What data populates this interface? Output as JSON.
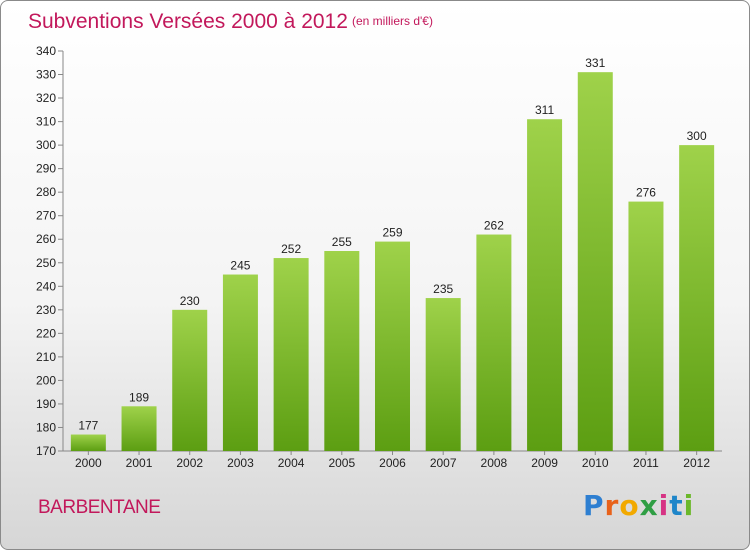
{
  "header": {
    "title": "Subventions Versées 2000 à 2012",
    "subtitle": "(en milliers d'€)"
  },
  "footer": {
    "town": "BARBENTANE",
    "logo_text": "Proxiti"
  },
  "colors": {
    "bar_top": "#9fd24a",
    "bar_bottom": "#5c9e12",
    "title": "#c2185b"
  },
  "chart_data": {
    "type": "bar",
    "title": "Subventions Versées 2000 à 2012",
    "subtitle": "(en milliers d'€)",
    "categories": [
      "2000",
      "2001",
      "2002",
      "2003",
      "2004",
      "2005",
      "2006",
      "2007",
      "2008",
      "2009",
      "2010",
      "2011",
      "2012"
    ],
    "values": [
      177,
      189,
      230,
      245,
      252,
      255,
      259,
      235,
      262,
      311,
      331,
      276,
      300
    ],
    "ylim": [
      170,
      340
    ],
    "ytick_step": 10,
    "grid": false,
    "data_labels": true
  }
}
